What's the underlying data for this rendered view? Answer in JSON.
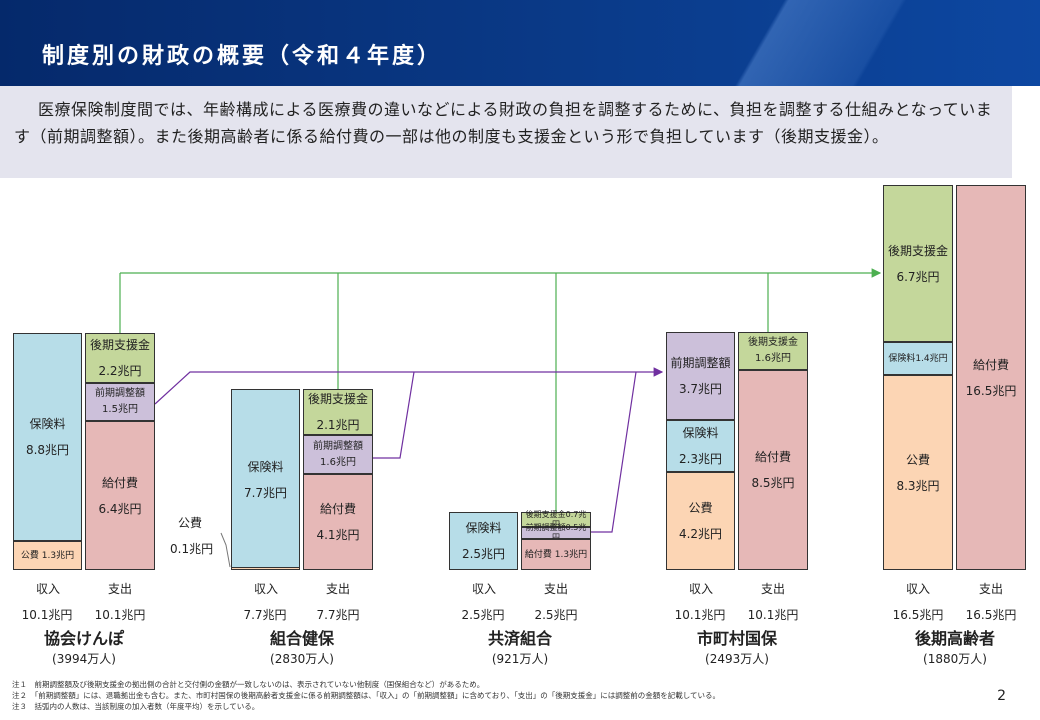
{
  "title": "制度別の財政の概要（令和４年度）",
  "intro": "医療保険制度間では、年齢構成による医療費の違いなどによる財政の負担を調整するために、負担を調整する仕組みとなっています（前期調整額）。また後期高齢者に係る給付費の一部は他の制度も支援金という形で負担しています（後期支援金）。",
  "colors": {
    "blue": "#b7dde8",
    "orange": "#fcd5b4",
    "pink": "#e6b8b7",
    "green": "#c4d79b",
    "purple": "#ccc0da",
    "arrow_green": "#4caf50",
    "arrow_purple": "#7030a0"
  },
  "groups": [
    {
      "name": "協会けんぽ",
      "count": "(3994万人)",
      "income_label": "収入",
      "expense_label": "支出",
      "income_total": "10.1兆円",
      "expense_total": "10.1兆円",
      "income": {
        "hokenryo": "保険料",
        "hokenryo_val": "8.8兆円",
        "kohi": "公費 1.3兆円"
      },
      "expense": {
        "shienkin": "後期支援金",
        "shienkin_val": "2.2兆円",
        "zenki": "前期調整額",
        "zenki_val": "1.5兆円",
        "kyufu": "給付費",
        "kyufu_val": "6.4兆円"
      }
    },
    {
      "name": "組合健保",
      "count": "(2830万人)",
      "income_label": "収入",
      "expense_label": "支出",
      "income_total": "7.7兆円",
      "expense_total": "7.7兆円",
      "income": {
        "hokenryo": "保険料",
        "hokenryo_val": "7.7兆円",
        "kohi_label": "公費",
        "kohi_val": "0.1兆円"
      },
      "expense": {
        "shienkin": "後期支援金",
        "shienkin_val": "2.1兆円",
        "zenki": "前期調整額",
        "zenki_val": "1.6兆円",
        "kyufu": "給付費",
        "kyufu_val": "4.1兆円"
      }
    },
    {
      "name": "共済組合",
      "count": "(921万人)",
      "income_label": "収入",
      "expense_label": "支出",
      "income_total": "2.5兆円",
      "expense_total": "2.5兆円",
      "income": {
        "hokenryo": "保険料",
        "hokenryo_val": "2.5兆円"
      },
      "expense": {
        "shienkin": "後期支援金0.7兆円",
        "zenki": "前期調整額0.5兆円",
        "kyufu": "給付費 1.3兆円"
      }
    },
    {
      "name": "市町村国保",
      "count": "(2493万人)",
      "income_label": "収入",
      "expense_label": "支出",
      "income_total": "10.1兆円",
      "expense_total": "10.1兆円",
      "income": {
        "zenki": "前期調整額",
        "zenki_val": "3.7兆円",
        "hokenryo": "保険料",
        "hokenryo_val": "2.3兆円",
        "kohi": "公費",
        "kohi_val": "4.2兆円"
      },
      "expense": {
        "shienkin": "後期支援金",
        "shienkin_val": "1.6兆円",
        "kyufu": "給付費",
        "kyufu_val": "8.5兆円"
      }
    },
    {
      "name": "後期高齢者",
      "count": "(1880万人)",
      "income_label": "収入",
      "expense_label": "支出",
      "income_total": "16.5兆円",
      "expense_total": "16.5兆円",
      "income": {
        "shienkin": "後期支援金",
        "shienkin_val": "6.7兆円",
        "hokenryo": "保険料1.4兆円",
        "kohi": "公費",
        "kohi_val": "8.3兆円"
      },
      "expense": {
        "kyufu": "給付費",
        "kyufu_val": "16.5兆円"
      }
    }
  ],
  "notes": [
    "注１　前期調整額及び後期支援金の拠出側の合計と交付側の金額が一致しないのは、表示されていない他制度（国保組合など）があるため。",
    "注２　「前期調整額」には、退職拠出金も含む。また、市町村国保の後期高齢者支援金に係る前期調整額は、「収入」の「前期調整額」に含めており、「支出」の「後期支援金」には調整前の金額を記載している。",
    "注３　括弧内の人数は、当該制度の加入者数（年度平均）を示している。"
  ],
  "page_number": "2"
}
